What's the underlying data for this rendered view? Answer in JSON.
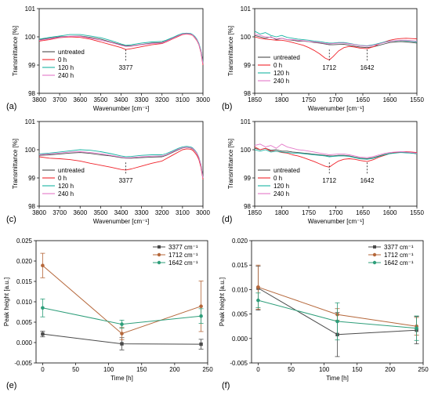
{
  "colors": {
    "untreated": "#4a4a4a",
    "h0": "#f0222a",
    "h120": "#17b3a3",
    "h240": "#e477c8",
    "p3377": "#4a4a4a",
    "p1712": "#b5673a",
    "p1642": "#2e9e7a"
  },
  "chart_data": [
    {
      "type": "line",
      "panel_label": "(a)",
      "xlabel": "Wavenumber [cm⁻¹]",
      "ylabel": "Transmittance [%]",
      "xlim": [
        3800,
        3000
      ],
      "ylim": [
        98,
        101
      ],
      "xticks": [
        3800,
        3700,
        3600,
        3500,
        3400,
        3300,
        3200,
        3100,
        3000
      ],
      "yticks": [
        98,
        99,
        100,
        101
      ],
      "legend_position": "left-middle",
      "annotation": {
        "text": "3377",
        "x": 3377
      },
      "x": [
        3800,
        3750,
        3700,
        3650,
        3600,
        3550,
        3500,
        3450,
        3400,
        3377,
        3350,
        3300,
        3250,
        3200,
        3180,
        3150,
        3120,
        3100,
        3080,
        3060,
        3050,
        3040,
        3030,
        3020,
        3010,
        3000
      ],
      "series": [
        {
          "name": "untreated",
          "values": [
            99.9,
            99.95,
            100.0,
            100.02,
            100.03,
            99.98,
            99.92,
            99.82,
            99.72,
            99.68,
            99.68,
            99.73,
            99.78,
            99.8,
            99.85,
            99.95,
            100.05,
            100.1,
            100.12,
            100.1,
            100.07,
            100.0,
            99.9,
            99.75,
            99.5,
            99.1
          ]
        },
        {
          "name": "0 h",
          "values": [
            99.85,
            99.9,
            99.97,
            100.0,
            99.98,
            99.92,
            99.82,
            99.72,
            99.62,
            99.55,
            99.58,
            99.65,
            99.72,
            99.76,
            99.82,
            99.92,
            100.02,
            100.08,
            100.1,
            100.08,
            100.05,
            99.97,
            99.87,
            99.72,
            99.45,
            99.0
          ]
        },
        {
          "name": "120 h",
          "values": [
            99.92,
            99.98,
            100.03,
            100.08,
            100.08,
            100.03,
            99.97,
            99.87,
            99.75,
            99.7,
            99.72,
            99.78,
            99.82,
            99.84,
            99.88,
            99.97,
            100.07,
            100.12,
            100.13,
            100.12,
            100.08,
            100.02,
            99.92,
            99.77,
            99.52,
            99.1
          ]
        },
        {
          "name": "240 h",
          "values": [
            99.88,
            99.93,
            99.98,
            100.02,
            100.02,
            99.95,
            99.88,
            99.8,
            99.7,
            99.66,
            99.67,
            99.72,
            99.76,
            99.78,
            99.84,
            99.94,
            100.04,
            100.1,
            100.11,
            100.1,
            100.06,
            99.99,
            99.89,
            99.74,
            99.48,
            99.05
          ]
        }
      ]
    },
    {
      "type": "line",
      "panel_label": "(b)",
      "xlabel": "Wavenumber [cm⁻¹]",
      "ylabel": "Transmittance [%]",
      "xlim": [
        1850,
        1550
      ],
      "ylim": [
        98,
        101
      ],
      "xticks": [
        1850,
        1800,
        1750,
        1700,
        1650,
        1600,
        1550
      ],
      "yticks": [
        98,
        99,
        100,
        101
      ],
      "legend_position": "left-bottom",
      "annotations": [
        {
          "text": "1712",
          "x": 1712
        },
        {
          "text": "1642",
          "x": 1642
        }
      ],
      "x": [
        1850,
        1840,
        1830,
        1820,
        1810,
        1800,
        1790,
        1780,
        1770,
        1760,
        1750,
        1740,
        1730,
        1720,
        1712,
        1705,
        1695,
        1685,
        1675,
        1665,
        1655,
        1642,
        1630,
        1620,
        1610,
        1600,
        1590,
        1580,
        1570,
        1560,
        1550
      ],
      "series": [
        {
          "name": "untreated",
          "values": [
            100.05,
            100.0,
            99.95,
            100.0,
            99.9,
            99.95,
            99.9,
            99.88,
            99.85,
            99.85,
            99.83,
            99.8,
            99.78,
            99.75,
            99.72,
            99.72,
            99.73,
            99.74,
            99.7,
            99.67,
            99.64,
            99.62,
            99.65,
            99.7,
            99.75,
            99.8,
            99.82,
            99.83,
            99.82,
            99.8,
            99.78
          ]
        },
        {
          "name": "0 h",
          "values": [
            100.0,
            99.95,
            99.92,
            99.9,
            99.88,
            99.88,
            99.85,
            99.8,
            99.75,
            99.7,
            99.62,
            99.52,
            99.4,
            99.25,
            99.18,
            99.3,
            99.5,
            99.62,
            99.66,
            99.64,
            99.6,
            99.58,
            99.65,
            99.75,
            99.82,
            99.88,
            99.92,
            99.94,
            99.95,
            99.94,
            99.93
          ]
        },
        {
          "name": "120 h",
          "values": [
            100.2,
            100.1,
            100.15,
            100.05,
            100.0,
            100.05,
            99.98,
            99.95,
            99.92,
            99.9,
            99.88,
            99.85,
            99.83,
            99.8,
            99.78,
            99.78,
            99.8,
            99.8,
            99.77,
            99.73,
            99.7,
            99.68,
            99.72,
            99.77,
            99.82,
            99.85,
            99.86,
            99.87,
            99.86,
            99.84,
            99.82
          ]
        },
        {
          "name": "240 h",
          "values": [
            100.1,
            100.05,
            100.0,
            99.98,
            99.93,
            99.95,
            99.9,
            99.9,
            99.88,
            99.86,
            99.84,
            99.82,
            99.8,
            99.77,
            99.75,
            99.76,
            99.78,
            99.78,
            99.75,
            99.72,
            99.69,
            99.67,
            99.7,
            99.75,
            99.8,
            99.84,
            99.87,
            99.88,
            99.88,
            99.86,
            99.85
          ]
        }
      ]
    },
    {
      "type": "line",
      "panel_label": "(c)",
      "xlabel": "Wavenumber [cm⁻¹]",
      "ylabel": "Transmittance [%]",
      "xlim": [
        3800,
        3000
      ],
      "ylim": [
        98,
        101
      ],
      "xticks": [
        3800,
        3700,
        3600,
        3500,
        3400,
        3300,
        3200,
        3100,
        3000
      ],
      "yticks": [
        98,
        99,
        100,
        101
      ],
      "legend_position": "left-bottom",
      "annotation": {
        "text": "3377",
        "x": 3377
      },
      "x": [
        3800,
        3750,
        3700,
        3650,
        3600,
        3550,
        3500,
        3450,
        3400,
        3377,
        3350,
        3300,
        3250,
        3200,
        3180,
        3150,
        3120,
        3100,
        3080,
        3060,
        3050,
        3040,
        3030,
        3020,
        3010,
        3000
      ],
      "series": [
        {
          "name": "untreated",
          "values": [
            99.8,
            99.82,
            99.85,
            99.88,
            99.9,
            99.87,
            99.82,
            99.78,
            99.72,
            99.7,
            99.7,
            99.72,
            99.74,
            99.75,
            99.8,
            99.9,
            100.0,
            100.06,
            100.08,
            100.06,
            100.03,
            99.96,
            99.86,
            99.7,
            99.45,
            99.0
          ]
        },
        {
          "name": "0 h",
          "values": [
            99.75,
            99.7,
            99.68,
            99.65,
            99.6,
            99.52,
            99.45,
            99.38,
            99.3,
            99.28,
            99.32,
            99.42,
            99.52,
            99.6,
            99.68,
            99.8,
            99.92,
            100.0,
            100.03,
            100.02,
            99.98,
            99.9,
            99.8,
            99.65,
            99.38,
            98.95
          ]
        },
        {
          "name": "120 h",
          "values": [
            99.85,
            99.88,
            99.92,
            99.96,
            100.0,
            99.98,
            99.93,
            99.86,
            99.78,
            99.75,
            99.76,
            99.8,
            99.82,
            99.82,
            99.86,
            99.95,
            100.05,
            100.1,
            100.12,
            100.1,
            100.06,
            99.99,
            99.89,
            99.73,
            99.47,
            99.02
          ]
        },
        {
          "name": "240 h",
          "values": [
            99.82,
            99.85,
            99.88,
            99.92,
            99.93,
            99.9,
            99.86,
            99.8,
            99.74,
            99.71,
            99.72,
            99.75,
            99.77,
            99.78,
            99.82,
            99.92,
            100.02,
            100.07,
            100.09,
            100.07,
            100.04,
            99.97,
            99.87,
            99.71,
            99.45,
            99.0
          ]
        }
      ]
    },
    {
      "type": "line",
      "panel_label": "(d)",
      "xlabel": "Wavenumber [cm⁻¹]",
      "ylabel": "Transmittance [%]",
      "xlim": [
        1850,
        1550
      ],
      "ylim": [
        98,
        101
      ],
      "xticks": [
        1850,
        1800,
        1750,
        1700,
        1650,
        1600,
        1550
      ],
      "yticks": [
        98,
        99,
        100,
        101
      ],
      "legend_position": "left-bottom",
      "annotations": [
        {
          "text": "1712",
          "x": 1712
        },
        {
          "text": "1642",
          "x": 1642
        }
      ],
      "x": [
        1850,
        1840,
        1830,
        1820,
        1810,
        1800,
        1790,
        1780,
        1770,
        1760,
        1750,
        1740,
        1730,
        1720,
        1712,
        1705,
        1695,
        1685,
        1675,
        1665,
        1655,
        1642,
        1630,
        1620,
        1610,
        1600,
        1590,
        1580,
        1570,
        1560,
        1550
      ],
      "series": [
        {
          "name": "untreated",
          "values": [
            100.05,
            100.0,
            100.05,
            99.98,
            100.0,
            99.95,
            99.95,
            99.92,
            99.9,
            99.88,
            99.86,
            99.84,
            99.82,
            99.8,
            99.78,
            99.78,
            99.8,
            99.8,
            99.78,
            99.74,
            99.7,
            99.68,
            99.72,
            99.78,
            99.83,
            99.87,
            99.9,
            99.9,
            99.9,
            99.88,
            99.86
          ]
        },
        {
          "name": "0 h",
          "values": [
            100.1,
            100.0,
            100.05,
            99.95,
            99.95,
            99.9,
            99.88,
            99.82,
            99.78,
            99.72,
            99.65,
            99.58,
            99.5,
            99.42,
            99.38,
            99.48,
            99.6,
            99.66,
            99.68,
            99.66,
            99.62,
            99.58,
            99.65,
            99.74,
            99.8,
            99.86,
            99.9,
            99.92,
            99.93,
            99.92,
            99.9
          ]
        },
        {
          "name": "120 h",
          "values": [
            100.0,
            99.95,
            100.0,
            99.92,
            99.95,
            99.92,
            99.9,
            99.88,
            99.88,
            99.86,
            99.84,
            99.82,
            99.8,
            99.78,
            99.75,
            99.76,
            99.78,
            99.78,
            99.76,
            99.72,
            99.68,
            99.66,
            99.7,
            99.76,
            99.82,
            99.86,
            99.88,
            99.9,
            99.89,
            99.88,
            99.86
          ]
        },
        {
          "name": "240 h",
          "values": [
            100.15,
            100.2,
            100.1,
            100.15,
            100.05,
            100.2,
            100.1,
            100.05,
            100.0,
            99.98,
            99.95,
            99.92,
            99.88,
            99.85,
            99.82,
            99.83,
            99.85,
            99.85,
            99.82,
            99.78,
            99.74,
            99.72,
            99.76,
            99.82,
            99.87,
            99.9,
            99.92,
            99.93,
            99.92,
            99.9,
            99.88
          ]
        }
      ]
    },
    {
      "type": "scatter",
      "panel_label": "(e)",
      "xlabel": "Time [h]",
      "ylabel": "Peak height [a.u.]",
      "xlim": [
        -10,
        250
      ],
      "ylim": [
        -0.005,
        0.025
      ],
      "xticks": [
        0,
        50,
        100,
        150,
        200,
        250
      ],
      "yticks": [
        -0.005,
        0.0,
        0.005,
        0.01,
        0.015,
        0.02,
        0.025
      ],
      "ytick_labels": [
        "-0.005",
        "0.000",
        "0.005",
        "0.010",
        "0.015",
        "0.020",
        "0.025"
      ],
      "legend_position": "top-right",
      "x": [
        0,
        120,
        240
      ],
      "series": [
        {
          "name": "3377 cm⁻¹",
          "values": [
            0.0021,
            -0.0003,
            -0.0004
          ],
          "errors": [
            0.0007,
            0.0015,
            0.0012
          ]
        },
        {
          "name": "1712 cm⁻¹",
          "values": [
            0.0189,
            0.0022,
            0.0089
          ],
          "errors": [
            0.003,
            0.0015,
            0.0062
          ]
        },
        {
          "name": "1642 cm⁻¹",
          "values": [
            0.0085,
            0.0045,
            0.0065
          ],
          "errors": [
            0.0022,
            0.001,
            0.0018
          ]
        }
      ]
    },
    {
      "type": "scatter",
      "panel_label": "(f)",
      "xlabel": "Time [h]",
      "ylabel": "Peak height [a.u.]",
      "xlim": [
        -10,
        250
      ],
      "ylim": [
        -0.005,
        0.02
      ],
      "xticks": [
        0,
        50,
        100,
        150,
        200,
        250
      ],
      "yticks": [
        -0.005,
        0.0,
        0.005,
        0.01,
        0.015,
        0.02
      ],
      "ytick_labels": [
        "-0.005",
        "0.000",
        "0.005",
        "0.010",
        "0.015",
        "0.020"
      ],
      "legend_position": "top-right",
      "x": [
        0,
        120,
        240
      ],
      "series": [
        {
          "name": "3377 cm⁻¹",
          "values": [
            0.0103,
            0.0008,
            0.0017
          ],
          "errors": [
            0.0045,
            0.0045,
            0.0028
          ]
        },
        {
          "name": "1712 cm⁻¹",
          "values": [
            0.0105,
            0.0049,
            0.0025
          ],
          "errors": [
            0.0045,
            0.0012,
            0.0018
          ]
        },
        {
          "name": "1642 cm⁻¹",
          "values": [
            0.0078,
            0.0035,
            0.0021
          ],
          "errors": [
            0.0015,
            0.0038,
            0.0025
          ]
        }
      ]
    }
  ]
}
